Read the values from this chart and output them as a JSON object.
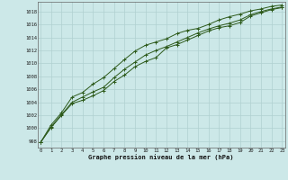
{
  "x": [
    0,
    1,
    2,
    3,
    4,
    5,
    6,
    7,
    8,
    9,
    10,
    11,
    12,
    13,
    14,
    15,
    16,
    17,
    18,
    19,
    20,
    21,
    22,
    23
  ],
  "line_min": [
    997.8,
    1000.1,
    1002.0,
    1003.8,
    1004.3,
    1005.0,
    1005.8,
    1007.2,
    1008.2,
    1009.5,
    1010.3,
    1010.9,
    1012.4,
    1012.9,
    1013.6,
    1014.3,
    1015.0,
    1015.5,
    1015.8,
    1016.3,
    1017.3,
    1017.8,
    1018.3,
    1018.6
  ],
  "line_mid": [
    997.8,
    1000.2,
    1002.1,
    1004.0,
    1004.8,
    1005.6,
    1006.3,
    1007.8,
    1009.1,
    1010.2,
    1011.3,
    1012.0,
    1012.6,
    1013.3,
    1014.0,
    1014.7,
    1015.3,
    1015.8,
    1016.2,
    1016.7,
    1017.5,
    1018.0,
    1018.4,
    1018.7
  ],
  "line_max": [
    997.8,
    1000.5,
    1002.4,
    1004.8,
    1005.5,
    1006.8,
    1007.8,
    1009.2,
    1010.6,
    1011.9,
    1012.8,
    1013.3,
    1013.8,
    1014.6,
    1015.1,
    1015.4,
    1016.0,
    1016.7,
    1017.2,
    1017.6,
    1018.1,
    1018.4,
    1018.8,
    1019.0
  ],
  "bg_color": "#cce8e8",
  "line_color": "#2d5a1b",
  "grid_color": "#b0d0d0",
  "title": "Graphe pression niveau de la mer (hPa)",
  "xlabel_ticks": [
    "0",
    "1",
    "2",
    "3",
    "4",
    "5",
    "6",
    "7",
    "8",
    "9",
    "10",
    "11",
    "12",
    "13",
    "14",
    "15",
    "16",
    "17",
    "18",
    "19",
    "20",
    "21",
    "22",
    "23"
  ],
  "yticks": [
    998,
    1000,
    1002,
    1004,
    1006,
    1008,
    1010,
    1012,
    1014,
    1016,
    1018
  ],
  "ylim": [
    997.0,
    1019.5
  ],
  "xlim": [
    -0.3,
    23.3
  ]
}
